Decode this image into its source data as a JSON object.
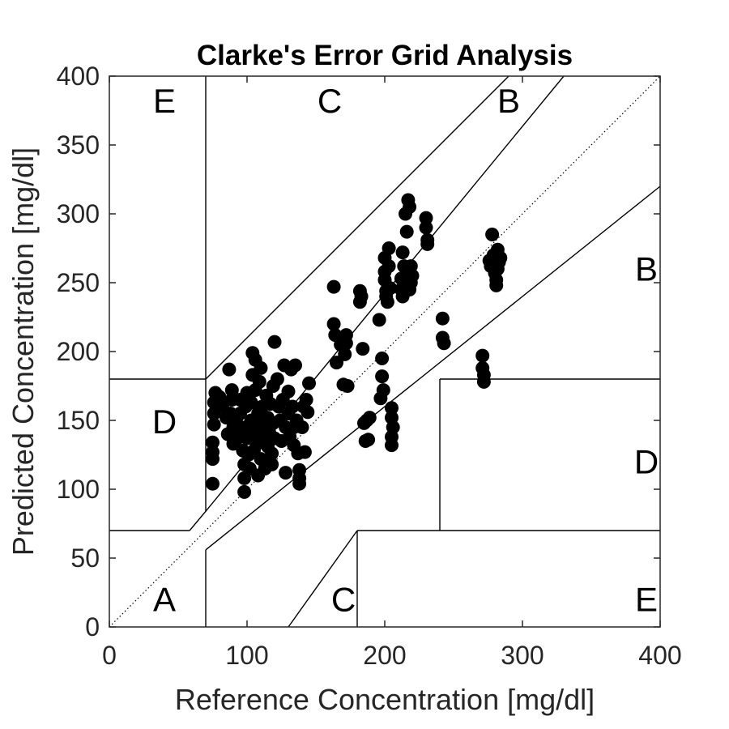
{
  "chart_data": {
    "type": "scatter",
    "title": "Clarke's Error Grid Analysis",
    "xlabel": "Reference Concentration [mg/dl]",
    "ylabel": "Predicted Concentration [mg/dl]",
    "xlim": [
      0,
      400
    ],
    "ylim": [
      0,
      400
    ],
    "xticks": [
      0,
      100,
      200,
      300,
      400
    ],
    "yticks": [
      0,
      50,
      100,
      150,
      200,
      250,
      300,
      350,
      400
    ],
    "grid": false,
    "marker_color": "#000000",
    "identity_line": {
      "from": [
        0,
        0
      ],
      "to": [
        400,
        400
      ],
      "style": "dotted"
    },
    "zone_lines": [
      {
        "from": [
          0,
          70
        ],
        "to": [
          58.3,
          70
        ]
      },
      {
        "from": [
          58.3,
          70
        ],
        "to": [
          70,
          84
        ]
      },
      {
        "from": [
          70,
          84
        ],
        "to": [
          70,
          400
        ]
      },
      {
        "from": [
          0,
          180
        ],
        "to": [
          70,
          180
        ]
      },
      {
        "from": [
          70,
          180
        ],
        "to": [
          290,
          400
        ]
      },
      {
        "from": [
          70,
          56
        ],
        "to": [
          400,
          320
        ]
      },
      {
        "from": [
          70,
          0
        ],
        "to": [
          70,
          56
        ]
      },
      {
        "from": [
          130,
          0
        ],
        "to": [
          180,
          70
        ]
      },
      {
        "from": [
          180,
          0
        ],
        "to": [
          180,
          70
        ]
      },
      {
        "from": [
          180,
          70
        ],
        "to": [
          400,
          70
        ]
      },
      {
        "from": [
          240,
          70
        ],
        "to": [
          240,
          180
        ]
      },
      {
        "from": [
          240,
          180
        ],
        "to": [
          400,
          180
        ]
      },
      {
        "from": [
          70,
          84
        ],
        "to": [
          330,
          400
        ]
      }
    ],
    "zone_labels": [
      {
        "text": "A",
        "x": 40,
        "y": 18
      },
      {
        "text": "B",
        "x": 290,
        "y": 380
      },
      {
        "text": "B",
        "x": 390,
        "y": 258
      },
      {
        "text": "C",
        "x": 160,
        "y": 380
      },
      {
        "text": "C",
        "x": 170,
        "y": 18
      },
      {
        "text": "D",
        "x": 40,
        "y": 147
      },
      {
        "text": "D",
        "x": 390,
        "y": 118
      },
      {
        "text": "E",
        "x": 40,
        "y": 380
      },
      {
        "text": "E",
        "x": 390,
        "y": 18
      }
    ],
    "points": [
      [
        75,
        104
      ],
      [
        75,
        122
      ],
      [
        75,
        127
      ],
      [
        75,
        134
      ],
      [
        76,
        147
      ],
      [
        76,
        155
      ],
      [
        76,
        163
      ],
      [
        77,
        170
      ],
      [
        80,
        167
      ],
      [
        82,
        160
      ],
      [
        85,
        152
      ],
      [
        86,
        140
      ],
      [
        87,
        187
      ],
      [
        88,
        155
      ],
      [
        89,
        165
      ],
      [
        89,
        172
      ],
      [
        90,
        145
      ],
      [
        90,
        133
      ],
      [
        92,
        150
      ],
      [
        93,
        137
      ],
      [
        95,
        165
      ],
      [
        95,
        155
      ],
      [
        96,
        142
      ],
      [
        97,
        128
      ],
      [
        98,
        98
      ],
      [
        98,
        108
      ],
      [
        98,
        118
      ],
      [
        99,
        160
      ],
      [
        99,
        145
      ],
      [
        100,
        137
      ],
      [
        100,
        170
      ],
      [
        101,
        125
      ],
      [
        102,
        115
      ],
      [
        103,
        150
      ],
      [
        103,
        163
      ],
      [
        104,
        183
      ],
      [
        104,
        199
      ],
      [
        105,
        140
      ],
      [
        105,
        128
      ],
      [
        106,
        172
      ],
      [
        106,
        194
      ],
      [
        107,
        133
      ],
      [
        108,
        155
      ],
      [
        108,
        146
      ],
      [
        108,
        110
      ],
      [
        109,
        178
      ],
      [
        110,
        122
      ],
      [
        110,
        188
      ],
      [
        111,
        138
      ],
      [
        111,
        160
      ],
      [
        112,
        148
      ],
      [
        113,
        115
      ],
      [
        114,
        168
      ],
      [
        115,
        131
      ],
      [
        115,
        152
      ],
      [
        116,
        142
      ],
      [
        117,
        162
      ],
      [
        118,
        118
      ],
      [
        118,
        126
      ],
      [
        119,
        175
      ],
      [
        119,
        148
      ],
      [
        120,
        207
      ],
      [
        120,
        137
      ],
      [
        122,
        180
      ],
      [
        123,
        160
      ],
      [
        124,
        150
      ],
      [
        125,
        135
      ],
      [
        126,
        165
      ],
      [
        127,
        190
      ],
      [
        128,
        112
      ],
      [
        128,
        145
      ],
      [
        130,
        155
      ],
      [
        130,
        171
      ],
      [
        131,
        138
      ],
      [
        132,
        187
      ],
      [
        133,
        160
      ],
      [
        134,
        132
      ],
      [
        134,
        145
      ],
      [
        135,
        190
      ],
      [
        136,
        150
      ],
      [
        137,
        126
      ],
      [
        138,
        114
      ],
      [
        138,
        108
      ],
      [
        138,
        104
      ],
      [
        140,
        145
      ],
      [
        141,
        160
      ],
      [
        142,
        127
      ],
      [
        143,
        165
      ],
      [
        144,
        156
      ],
      [
        145,
        177
      ],
      [
        163,
        247
      ],
      [
        163,
        220
      ],
      [
        164,
        212
      ],
      [
        165,
        192
      ],
      [
        168,
        205
      ],
      [
        170,
        176
      ],
      [
        171,
        198
      ],
      [
        172,
        212
      ],
      [
        172,
        206
      ],
      [
        173,
        175
      ],
      [
        182,
        244
      ],
      [
        182,
        236
      ],
      [
        183,
        240
      ],
      [
        184,
        202
      ],
      [
        185,
        148
      ],
      [
        186,
        135
      ],
      [
        187,
        150
      ],
      [
        188,
        136
      ],
      [
        189,
        152
      ],
      [
        196,
        223
      ],
      [
        197,
        166
      ],
      [
        198,
        182
      ],
      [
        198,
        195
      ],
      [
        199,
        172
      ],
      [
        200,
        268
      ],
      [
        200,
        258
      ],
      [
        200,
        252
      ],
      [
        201,
        244
      ],
      [
        201,
        240
      ],
      [
        202,
        236
      ],
      [
        203,
        275
      ],
      [
        203,
        262
      ],
      [
        204,
        246
      ],
      [
        205,
        159
      ],
      [
        205,
        152
      ],
      [
        205,
        138
      ],
      [
        205,
        132
      ],
      [
        206,
        145
      ],
      [
        212,
        253
      ],
      [
        212,
        245
      ],
      [
        213,
        240
      ],
      [
        213,
        272
      ],
      [
        214,
        262
      ],
      [
        215,
        300
      ],
      [
        216,
        287
      ],
      [
        216,
        258
      ],
      [
        217,
        310
      ],
      [
        218,
        305
      ],
      [
        218,
        245
      ],
      [
        219,
        250
      ],
      [
        219,
        262
      ],
      [
        220,
        255
      ],
      [
        230,
        297
      ],
      [
        230,
        290
      ],
      [
        231,
        281
      ],
      [
        231,
        278
      ],
      [
        242,
        224
      ],
      [
        242,
        210
      ],
      [
        243,
        206
      ],
      [
        271,
        197
      ],
      [
        271,
        188
      ],
      [
        272,
        183
      ],
      [
        272,
        178
      ],
      [
        276,
        266
      ],
      [
        277,
        262
      ],
      [
        278,
        285
      ],
      [
        279,
        270
      ],
      [
        280,
        257
      ],
      [
        281,
        252
      ],
      [
        281,
        248
      ],
      [
        282,
        274
      ],
      [
        282,
        260
      ],
      [
        283,
        265
      ],
      [
        284,
        268
      ]
    ]
  }
}
